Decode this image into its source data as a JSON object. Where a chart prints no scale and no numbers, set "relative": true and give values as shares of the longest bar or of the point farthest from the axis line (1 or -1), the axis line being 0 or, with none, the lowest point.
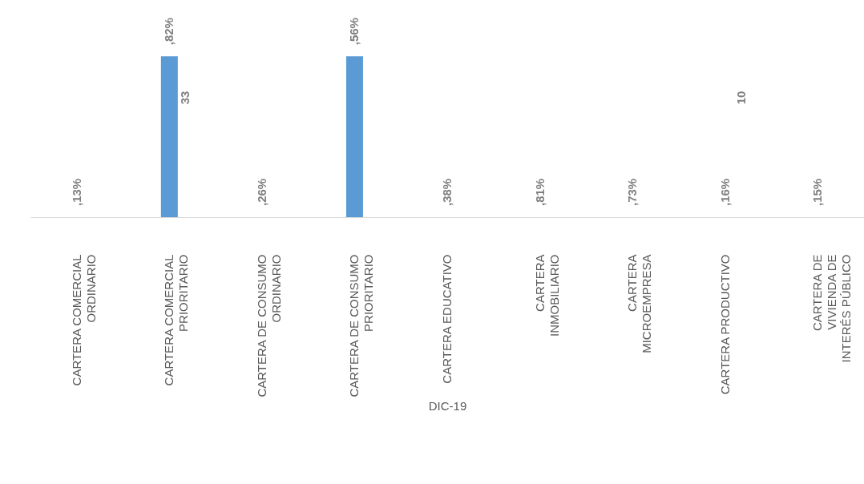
{
  "chart_data": {
    "type": "bar",
    "relative": true,
    "xlabel": "DIC-19",
    "categories": [
      "CARTERA COMERCIAL ORDINARIO",
      "CARTERA COMERCIAL PRIORITARIO",
      "CARTERA DE CONSUMO ORDINARIO",
      "CARTERA DE CONSUMO PRIORITARIO",
      "CARTERA EDUCATIVO",
      "CARTERA INMOBILIARIO",
      "CARTERA MICROEMPRESA",
      "CARTERA PRODUCTIVO",
      "CARTERA DE VIVIENDA DE INTERÉS PÚBLICO"
    ],
    "series": [
      {
        "color": "#5b9bd5",
        "values": [
          0,
          1,
          0,
          1,
          0,
          0,
          0,
          0,
          0
        ]
      }
    ],
    "annotations": [
      ",13%",
      ",82%",
      ",26%",
      ",56%",
      ",38%",
      ",81%",
      ",73%",
      ",16%",
      ",15%",
      "33",
      "10"
    ],
    "grid": false
  }
}
